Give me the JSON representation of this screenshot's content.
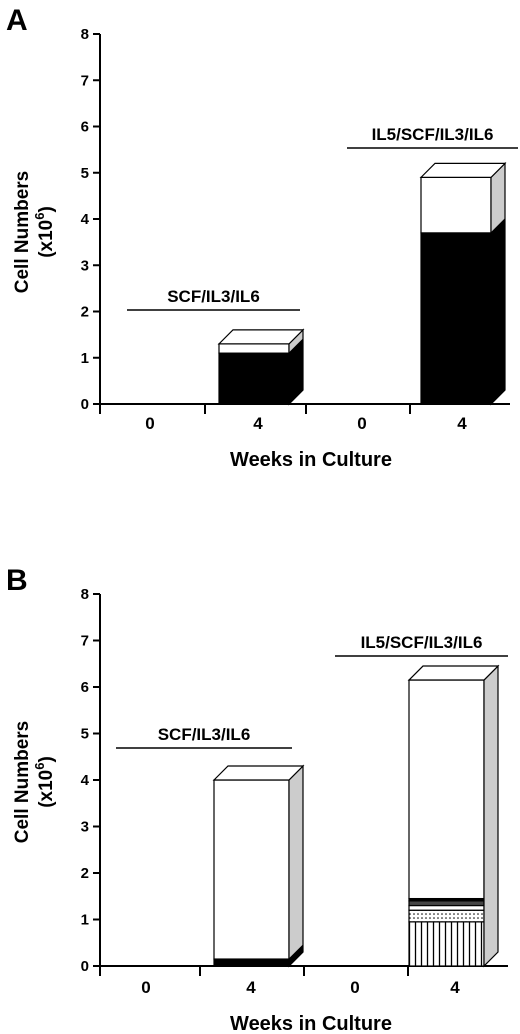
{
  "colors": {
    "black": "#000000",
    "white": "#ffffff",
    "side_gray": "#cccccc",
    "dark_gray": "#444444"
  },
  "chart_data": [
    {
      "panel": "A",
      "type": "bar",
      "stacked": true,
      "style": "3d",
      "xlabel": "Weeks in Culture",
      "ylabel": "Cell Numbers (x10^6)",
      "ylabel_line1": "Cell Numbers",
      "ylabel_line2_base": "(x10",
      "ylabel_line2_exp": "6",
      "ylabel_line2_end": ")",
      "ylim": [
        0,
        8
      ],
      "yticks": [
        "0",
        "1",
        "2",
        "3",
        "4",
        "5",
        "6",
        "7",
        "8"
      ],
      "groups": [
        {
          "label": "SCF/IL3/IL6",
          "categories": [
            "0",
            "4"
          ]
        },
        {
          "label": "IL5/SCF/IL3/IL6",
          "categories": [
            "0",
            "4"
          ]
        }
      ],
      "bars": [
        {
          "group": 0,
          "category": "0",
          "segments": []
        },
        {
          "group": 0,
          "category": "4",
          "segments": [
            {
              "fill": "black",
              "value": 1.1
            },
            {
              "fill": "white",
              "value": 0.2
            }
          ]
        },
        {
          "group": 1,
          "category": "0",
          "segments": []
        },
        {
          "group": 1,
          "category": "4",
          "segments": [
            {
              "fill": "black",
              "value": 3.7
            },
            {
              "fill": "white",
              "value": 1.2
            }
          ]
        }
      ]
    },
    {
      "panel": "B",
      "type": "bar",
      "stacked": true,
      "style": "3d",
      "xlabel": "Weeks in Culture",
      "ylabel": "Cell Numbers (x10^6)",
      "ylabel_line1": "Cell Numbers",
      "ylabel_line2_base": "(x10",
      "ylabel_line2_exp": "6",
      "ylabel_line2_end": ")",
      "ylim": [
        0,
        8
      ],
      "yticks": [
        "0",
        "1",
        "2",
        "3",
        "4",
        "5",
        "6",
        "7",
        "8"
      ],
      "groups": [
        {
          "label": "SCF/IL3/IL6",
          "categories": [
            "0",
            "4"
          ]
        },
        {
          "label": "IL5/SCF/IL3/IL6",
          "categories": [
            "0",
            "4"
          ]
        }
      ],
      "bars": [
        {
          "group": 0,
          "category": "0",
          "segments": []
        },
        {
          "group": 0,
          "category": "4",
          "segments": [
            {
              "fill": "black",
              "value": 0.15
            },
            {
              "fill": "white",
              "value": 3.85
            }
          ]
        },
        {
          "group": 1,
          "category": "0",
          "segments": []
        },
        {
          "group": 1,
          "category": "4",
          "segments": [
            {
              "fill": "vertical-stripes",
              "value": 0.95
            },
            {
              "fill": "dotted",
              "value": 0.25
            },
            {
              "fill": "white",
              "value": 0.1
            },
            {
              "fill": "dark-gray",
              "value": 0.1
            },
            {
              "fill": "black",
              "value": 0.05
            },
            {
              "fill": "white",
              "value": 4.7
            }
          ]
        }
      ]
    }
  ]
}
